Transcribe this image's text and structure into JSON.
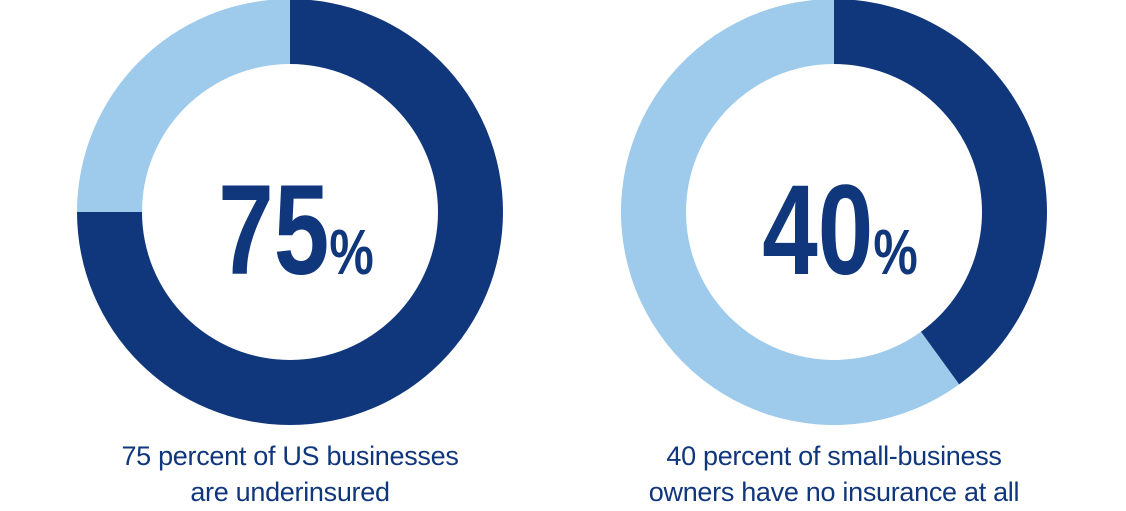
{
  "colors": {
    "primary": "#10367c",
    "secondary": "#9ecbeb",
    "background": "#ffffff"
  },
  "chart_data": [
    {
      "type": "pie",
      "variant": "donut",
      "value": 75,
      "remainder": 25,
      "unit": "%",
      "label_number": "75",
      "label_unit": "%",
      "caption_lines": [
        "75 percent of US businesses",
        "are underinsured"
      ],
      "slices": [
        {
          "value": 75,
          "color": "#10367c"
        },
        {
          "value": 25,
          "color": "#9ecbeb"
        }
      ]
    },
    {
      "type": "pie",
      "variant": "donut",
      "value": 40,
      "remainder": 60,
      "unit": "%",
      "label_number": "40",
      "label_unit": "%",
      "caption_lines": [
        "40 percent of small-business",
        "owners have no insurance at all"
      ],
      "slices": [
        {
          "value": 40,
          "color": "#10367c"
        },
        {
          "value": 60,
          "color": "#9ecbeb"
        }
      ]
    }
  ]
}
